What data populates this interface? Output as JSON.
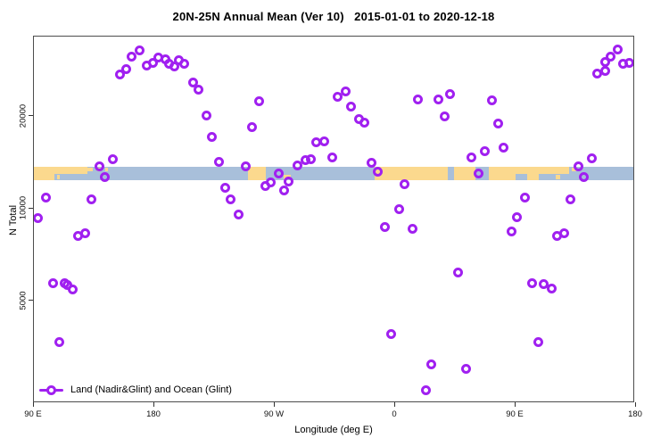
{
  "title": "20N-25N Annual Mean (Ver 10)   2015-01-01 to 2020-12-18",
  "chart_data": {
    "type": "scatter",
    "title": "20N-25N Annual Mean (Ver 10)   2015-01-01 to 2020-12-18",
    "xlabel": "Longitude (deg E)",
    "ylabel": "N Total",
    "x_axis": {
      "note": "axis starts at 90 deg E and continues eastward 450 degrees (wraps past 180 and 0)",
      "range_deg": [
        0,
        450
      ],
      "ticks": [
        {
          "d": 0,
          "label": "90 E"
        },
        {
          "d": 90,
          "label": "180"
        },
        {
          "d": 180,
          "label": "90 W"
        },
        {
          "d": 270,
          "label": "0"
        },
        {
          "d": 360,
          "label": "90 E"
        },
        {
          "d": 450,
          "label": "180"
        }
      ]
    },
    "y_axis": {
      "scale": "log",
      "range": [
        2300,
        36000
      ],
      "ticks": [
        {
          "v": 20000,
          "label": "20000"
        },
        {
          "v": 10000,
          "label": "10000"
        },
        {
          "v": 5000,
          "label": "5000"
        }
      ]
    },
    "legend": {
      "label": "Land (Nadir&Glint) and Ocean (Glint)",
      "marker": "open-circle-on-line",
      "color": "#a020f0",
      "position": "bottom-left-inside"
    },
    "points_format": "[deg_east_of_90E_along_axis, N_total]",
    "points": [
      [
        64.0,
        27400
      ],
      [
        69.3,
        28500
      ],
      [
        73.3,
        31300
      ],
      [
        78.7,
        32800
      ],
      [
        84.0,
        29300
      ],
      [
        88.7,
        29900
      ],
      [
        92.7,
        31100
      ],
      [
        98.0,
        30700
      ],
      [
        101.3,
        29700
      ],
      [
        104.7,
        29100
      ],
      [
        108.0,
        30500
      ],
      [
        112.0,
        29700
      ],
      [
        118.7,
        25800
      ],
      [
        122.7,
        24500
      ],
      [
        128.7,
        20100
      ],
      [
        133.3,
        17100
      ],
      [
        138.0,
        14200
      ],
      [
        142.7,
        11700
      ],
      [
        147.3,
        10700
      ],
      [
        152.7,
        9570
      ],
      [
        168.0,
        22400
      ],
      [
        162.7,
        18500
      ],
      [
        158.0,
        13700
      ],
      [
        48.7,
        13700
      ],
      [
        52.7,
        12700
      ],
      [
        58.7,
        14500
      ],
      [
        8.7,
        10900
      ],
      [
        43.3,
        10700
      ],
      [
        3.3,
        9320
      ],
      [
        210.7,
        16500
      ],
      [
        216.7,
        16600
      ],
      [
        222.7,
        14700
      ],
      [
        197.3,
        13800
      ],
      [
        202.7,
        14400
      ],
      [
        207.3,
        14500
      ],
      [
        183.3,
        13000
      ],
      [
        173.3,
        11900
      ],
      [
        177.3,
        12200
      ],
      [
        186.7,
        11500
      ],
      [
        190.0,
        12300
      ],
      [
        227.3,
        23200
      ],
      [
        233.3,
        24100
      ],
      [
        237.3,
        21500
      ],
      [
        242.7,
        19600
      ],
      [
        247.3,
        19100
      ],
      [
        287.3,
        22700
      ],
      [
        302.0,
        22700
      ],
      [
        311.3,
        23700
      ],
      [
        307.3,
        20000
      ],
      [
        342.0,
        22600
      ],
      [
        346.7,
        19000
      ],
      [
        351.3,
        15800
      ],
      [
        326.7,
        14700
      ],
      [
        337.3,
        15400
      ],
      [
        332.0,
        13000
      ],
      [
        252.0,
        14100
      ],
      [
        257.3,
        13200
      ],
      [
        276.7,
        12000
      ],
      [
        272.7,
        9970
      ],
      [
        366.7,
        10900
      ],
      [
        361.3,
        9380
      ],
      [
        400.7,
        10700
      ],
      [
        406.7,
        13700
      ],
      [
        416.7,
        14600
      ],
      [
        411.3,
        12700
      ],
      [
        421.3,
        27600
      ],
      [
        426.7,
        28200
      ],
      [
        427.3,
        30100
      ],
      [
        431.3,
        31300
      ],
      [
        436.0,
        33100
      ],
      [
        440.0,
        29700
      ],
      [
        445.3,
        29900
      ],
      [
        33.3,
        8150
      ],
      [
        38.0,
        8320
      ],
      [
        14.0,
        5720
      ],
      [
        23.3,
        5720
      ],
      [
        25.3,
        5640
      ],
      [
        28.7,
        5450
      ],
      [
        19.3,
        3680
      ],
      [
        262.0,
        8720
      ],
      [
        282.7,
        8600
      ],
      [
        356.7,
        8430
      ],
      [
        390.7,
        8150
      ],
      [
        396.0,
        8320
      ],
      [
        316.7,
        6200
      ],
      [
        372.0,
        5720
      ],
      [
        380.7,
        5680
      ],
      [
        386.7,
        5490
      ],
      [
        267.3,
        3900
      ],
      [
        377.3,
        3680
      ],
      [
        296.7,
        3110
      ],
      [
        322.7,
        3010
      ],
      [
        292.7,
        2560
      ]
    ],
    "map_strip": {
      "description": "thin land/ocean world-map strip of the 20N-25N latitude band drawn across the plot",
      "value_top": 13700,
      "value_bottom": 12400,
      "ocean_color": "#a8bfda",
      "land_color": "#fbd98e",
      "land_segments": [
        {
          "d0": 0,
          "d1": 40,
          "row": "top"
        },
        {
          "d0": 0,
          "d1": 15,
          "row": "bottom"
        },
        {
          "d0": 40,
          "d1": 44,
          "row": "speck-top"
        },
        {
          "d0": 47,
          "d1": 50,
          "row": "speck-top"
        },
        {
          "d0": 53,
          "d1": 55,
          "row": "speck-top"
        },
        {
          "d0": 17,
          "d1": 19,
          "row": "speck-bottom"
        },
        {
          "d0": 160,
          "d1": 173.5,
          "row": "full"
        },
        {
          "d0": 186.5,
          "d1": 192,
          "row": "speck-bottom"
        },
        {
          "d0": 254.5,
          "d1": 309,
          "row": "full"
        },
        {
          "d0": 314,
          "d1": 330,
          "row": "full"
        },
        {
          "d0": 340,
          "d1": 360,
          "row": "full"
        },
        {
          "d0": 360,
          "d1": 400,
          "row": "top"
        },
        {
          "d0": 368.5,
          "d1": 377,
          "row": "bottom"
        },
        {
          "d0": 390,
          "d1": 393,
          "row": "speck-bottom"
        },
        {
          "d0": 402,
          "d1": 405,
          "row": "speck-top"
        }
      ]
    },
    "point_color": "#a020f0"
  }
}
